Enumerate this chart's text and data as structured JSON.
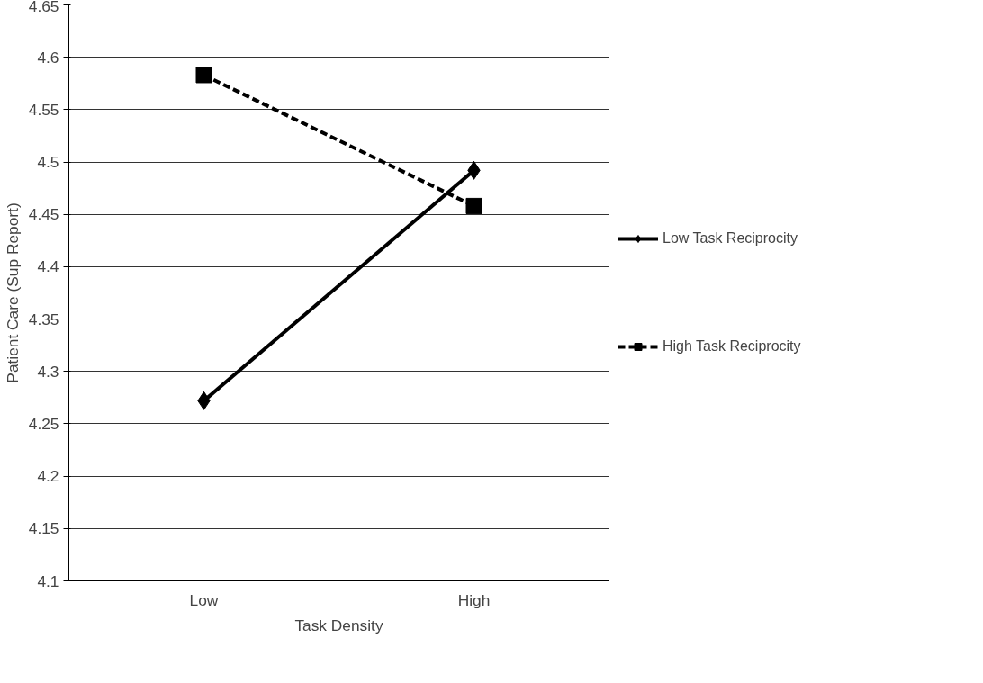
{
  "chart_data": {
    "type": "line",
    "xlabel": "Task Density",
    "ylabel": "Patient Care (Sup Report)",
    "categories": [
      "Low",
      "High"
    ],
    "series": [
      {
        "name": "Low Task Reciprocity",
        "color": "#000000",
        "values": [
          4.272,
          4.492
        ],
        "marker": "diamond",
        "line_style": "solid"
      },
      {
        "name": "High Task Reciprocity",
        "color": "#000000",
        "values": [
          4.583,
          4.458
        ],
        "marker": "square",
        "line_style": "dashed"
      }
    ],
    "ylim": [
      4.1,
      4.65
    ],
    "yticks": [
      4.1,
      4.15,
      4.2,
      4.25,
      4.3,
      4.35,
      4.4,
      4.45,
      4.5,
      4.55,
      4.6,
      4.65
    ],
    "grid": "y",
    "legend": "right"
  }
}
